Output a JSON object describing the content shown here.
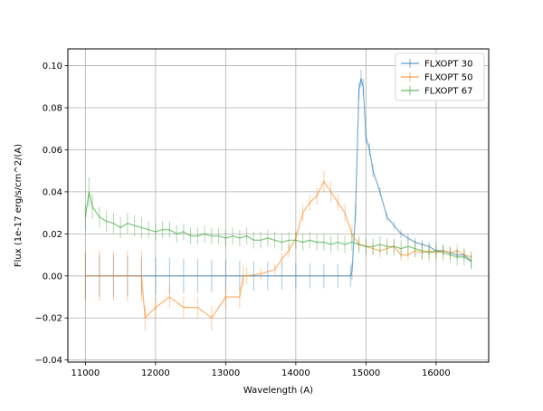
{
  "chart_data": {
    "type": "line",
    "title": "",
    "xlabel": "Wavelength (A)",
    "ylabel": "Flux (1e-17 erg/s/cm^2/(A)",
    "xlim": [
      10750,
      16750
    ],
    "ylim": [
      -0.041,
      0.108
    ],
    "x_ticks": [
      11000,
      12000,
      13000,
      14000,
      15000,
      16000
    ],
    "x_tick_labels": [
      "11000",
      "12000",
      "13000",
      "14000",
      "15000",
      "16000"
    ],
    "y_ticks": [
      -0.04,
      -0.02,
      0.0,
      0.02,
      0.04,
      0.06,
      0.08,
      0.1
    ],
    "y_tick_labels": [
      "−0.04",
      "−0.02",
      "0.00",
      "0.02",
      "0.04",
      "0.06",
      "0.08",
      "0.10"
    ],
    "grid": true,
    "legend_position": "top-right",
    "series": [
      {
        "name": "FLXOPT 30",
        "color": "#1f77b4",
        "x": [
          11000,
          11200,
          11400,
          11600,
          11800,
          12000,
          12200,
          12400,
          12600,
          12800,
          13000,
          13200,
          13400,
          13600,
          13800,
          14000,
          14200,
          14400,
          14600,
          14780,
          14800,
          14850,
          14900,
          14930,
          14960,
          15000,
          15050,
          15100,
          15200,
          15300,
          15400,
          15500,
          15600,
          15700,
          15800,
          15900,
          16000,
          16100,
          16200,
          16300,
          16400,
          16500
        ],
        "y": [
          0.0,
          0.0,
          0.0,
          0.0,
          0.0,
          0.0,
          0.0,
          0.0,
          0.0,
          0.0,
          0.0,
          0.0,
          0.0,
          0.0,
          0.0,
          0.0,
          0.0,
          0.0,
          0.0,
          0.0,
          0.002,
          0.03,
          0.088,
          0.094,
          0.09,
          0.066,
          0.06,
          0.05,
          0.04,
          0.028,
          0.024,
          0.02,
          0.018,
          0.016,
          0.015,
          0.014,
          0.012,
          0.012,
          0.011,
          0.01,
          0.01,
          0.007
        ],
        "err": [
          0.011,
          0.01,
          0.01,
          0.0095,
          0.009,
          0.0088,
          0.0085,
          0.0082,
          0.008,
          0.0078,
          0.0075,
          0.0072,
          0.007,
          0.0068,
          0.0065,
          0.0062,
          0.006,
          0.0058,
          0.0055,
          0.005,
          0.004,
          0.004,
          0.004,
          0.004,
          0.004,
          0.003,
          0.003,
          0.003,
          0.002,
          0.002,
          0.002,
          0.002,
          0.002,
          0.002,
          0.002,
          0.002,
          0.002,
          0.002,
          0.002,
          0.002,
          0.002,
          0.003
        ]
      },
      {
        "name": "FLXOPT 50",
        "color": "#ff7f0e",
        "x": [
          11000,
          11200,
          11400,
          11600,
          11800,
          11850,
          12000,
          12200,
          12400,
          12600,
          12800,
          13000,
          13200,
          13250,
          13300,
          13500,
          13700,
          13800,
          13900,
          14000,
          14100,
          14200,
          14300,
          14400,
          14500,
          14600,
          14700,
          14800,
          14900,
          15000,
          15100,
          15200,
          15300,
          15400,
          15500,
          15600,
          15700,
          15800,
          15900,
          16000,
          16100,
          16200,
          16300,
          16400,
          16500
        ],
        "y": [
          0.0,
          0.0,
          0.0,
          0.0,
          0.0,
          -0.02,
          -0.015,
          -0.01,
          -0.015,
          -0.015,
          -0.02,
          -0.01,
          -0.01,
          0.0,
          0.0,
          0.001,
          0.003,
          0.008,
          0.012,
          0.018,
          0.03,
          0.035,
          0.038,
          0.045,
          0.04,
          0.035,
          0.03,
          0.02,
          0.015,
          0.014,
          0.013,
          0.012,
          0.013,
          0.014,
          0.01,
          0.01,
          0.012,
          0.011,
          0.012,
          0.011,
          0.012,
          0.011,
          0.012,
          0.01,
          0.009
        ],
        "err": [
          0.012,
          0.012,
          0.012,
          0.012,
          0.012,
          0.006,
          0.005,
          0.005,
          0.005,
          0.005,
          0.006,
          0.005,
          0.005,
          0.005,
          0.004,
          0.003,
          0.003,
          0.003,
          0.003,
          0.004,
          0.004,
          0.004,
          0.004,
          0.005,
          0.005,
          0.004,
          0.004,
          0.004,
          0.003,
          0.003,
          0.003,
          0.003,
          0.003,
          0.003,
          0.003,
          0.003,
          0.003,
          0.003,
          0.003,
          0.003,
          0.003,
          0.003,
          0.003,
          0.003,
          0.003
        ]
      },
      {
        "name": "FLXOPT 67",
        "color": "#2ca02c",
        "x": [
          11000,
          11050,
          11100,
          11200,
          11300,
          11400,
          11500,
          11600,
          11700,
          11800,
          11900,
          12000,
          12100,
          12200,
          12300,
          12400,
          12500,
          12600,
          12700,
          12800,
          12900,
          13000,
          13100,
          13200,
          13300,
          13400,
          13500,
          13600,
          13700,
          13800,
          13900,
          14000,
          14100,
          14200,
          14300,
          14400,
          14500,
          14600,
          14700,
          14800,
          14900,
          15000,
          15100,
          15200,
          15300,
          15400,
          15500,
          15600,
          15700,
          15800,
          15900,
          16000,
          16100,
          16200,
          16300,
          16400,
          16500
        ],
        "y": [
          0.028,
          0.04,
          0.033,
          0.028,
          0.026,
          0.025,
          0.023,
          0.025,
          0.024,
          0.023,
          0.022,
          0.021,
          0.022,
          0.022,
          0.02,
          0.021,
          0.019,
          0.019,
          0.02,
          0.019,
          0.019,
          0.018,
          0.019,
          0.018,
          0.019,
          0.017,
          0.017,
          0.018,
          0.017,
          0.016,
          0.017,
          0.017,
          0.016,
          0.017,
          0.016,
          0.016,
          0.015,
          0.016,
          0.015,
          0.016,
          0.015,
          0.014,
          0.014,
          0.015,
          0.014,
          0.014,
          0.013,
          0.014,
          0.013,
          0.012,
          0.011,
          0.012,
          0.011,
          0.01,
          0.009,
          0.009,
          0.007
        ],
        "err": [
          0.006,
          0.007,
          0.006,
          0.005,
          0.005,
          0.005,
          0.005,
          0.005,
          0.005,
          0.005,
          0.004,
          0.004,
          0.004,
          0.004,
          0.004,
          0.004,
          0.004,
          0.004,
          0.004,
          0.004,
          0.004,
          0.004,
          0.004,
          0.004,
          0.004,
          0.004,
          0.004,
          0.004,
          0.004,
          0.004,
          0.004,
          0.004,
          0.004,
          0.004,
          0.004,
          0.004,
          0.004,
          0.004,
          0.004,
          0.004,
          0.004,
          0.004,
          0.004,
          0.004,
          0.004,
          0.004,
          0.004,
          0.004,
          0.004,
          0.004,
          0.004,
          0.004,
          0.004,
          0.004,
          0.004,
          0.004,
          0.004
        ]
      }
    ]
  }
}
